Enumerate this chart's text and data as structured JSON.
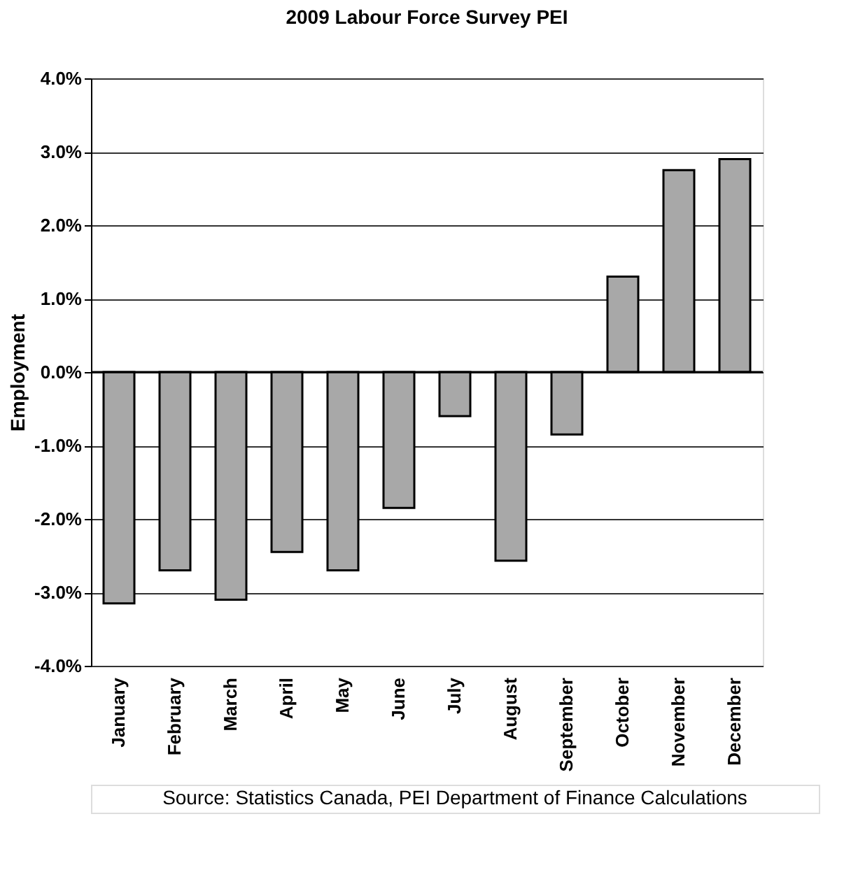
{
  "chart_data": {
    "type": "bar",
    "title": "2009 Labour Force Survey PEI",
    "ylabel": "Employment",
    "categories": [
      "January",
      "February",
      "March",
      "April",
      "May",
      "June",
      "July",
      "August",
      "September",
      "October",
      "November",
      "December"
    ],
    "values": [
      -3.15,
      -2.7,
      -3.1,
      -2.45,
      -2.7,
      -1.85,
      -0.6,
      -2.57,
      -0.85,
      1.3,
      2.75,
      2.9
    ],
    "color": "#a8a8a8",
    "ylim": [
      -4,
      4
    ],
    "yticks": [
      {
        "value": -4,
        "label": "-4.0%"
      },
      {
        "value": -3,
        "label": "-3.0%"
      },
      {
        "value": -2,
        "label": "-2.0%"
      },
      {
        "value": -1,
        "label": "-1.0%"
      },
      {
        "value": 0,
        "label": "0.0%"
      },
      {
        "value": 1,
        "label": "1.0%"
      },
      {
        "value": 2,
        "label": "2.0%"
      },
      {
        "value": 3,
        "label": "3.0%"
      },
      {
        "value": 4,
        "label": "4.0%"
      }
    ],
    "grid": "y",
    "annotations": [
      "Source: Statistics Canada, PEI Department of Finance Calculations"
    ]
  }
}
